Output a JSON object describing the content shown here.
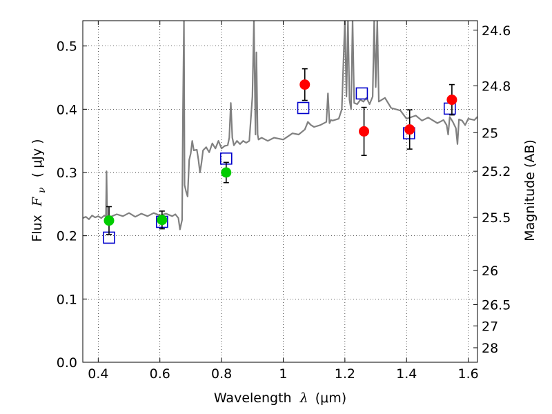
{
  "chart_data": {
    "type": "scatter",
    "xlabel_prefix": "Wavelength",
    "xlabel_symbol": "λ",
    "xlabel_unit": "(μm)",
    "ylabel_prefix": "Flux",
    "ylabel_symbol": "F",
    "ylabel_subscript": "ν",
    "ylabel_unit": "( μJy )",
    "y2label": "Magnitude (AB)",
    "xlim": [
      0.35,
      1.63
    ],
    "ylim": [
      0.0,
      0.54
    ],
    "x_ticks": [
      0.4,
      0.6,
      0.8,
      1.0,
      1.2,
      1.4,
      1.6
    ],
    "x_tick_labels": [
      "0.4",
      "0.6",
      "0.8",
      "1",
      "1.2",
      "1.4",
      "1.6"
    ],
    "y_ticks": [
      0.0,
      0.1,
      0.2,
      0.3,
      0.4,
      0.5
    ],
    "y_tick_labels": [
      "0.0",
      "0.1",
      "0.2",
      "0.3",
      "0.4",
      "0.5"
    ],
    "y2_ticks": [
      {
        "label": "24.6",
        "flux": 0.525
      },
      {
        "label": "24.8",
        "flux": 0.437
      },
      {
        "label": "25",
        "flux": 0.363
      },
      {
        "label": "25.2",
        "flux": 0.302
      },
      {
        "label": "25.5",
        "flux": 0.229
      },
      {
        "label": "26",
        "flux": 0.145
      },
      {
        "label": "26.5",
        "flux": 0.0912
      },
      {
        "label": "27",
        "flux": 0.0575
      },
      {
        "label": "28",
        "flux": 0.0229
      }
    ],
    "grid": true,
    "series": [
      {
        "kind": "spectrum",
        "color": "#808080",
        "x": [
          0.35,
          0.36,
          0.37,
          0.38,
          0.39,
          0.4,
          0.41,
          0.42,
          0.425,
          0.427,
          0.429,
          0.432,
          0.44,
          0.46,
          0.48,
          0.5,
          0.52,
          0.54,
          0.56,
          0.58,
          0.6,
          0.62,
          0.64,
          0.65,
          0.66,
          0.665,
          0.672,
          0.675,
          0.678,
          0.68,
          0.685,
          0.69,
          0.695,
          0.7,
          0.705,
          0.71,
          0.72,
          0.725,
          0.73,
          0.735,
          0.74,
          0.75,
          0.76,
          0.77,
          0.78,
          0.79,
          0.8,
          0.81,
          0.82,
          0.825,
          0.83,
          0.835,
          0.84,
          0.85,
          0.86,
          0.87,
          0.88,
          0.89,
          0.9,
          0.905,
          0.91,
          0.913,
          0.917,
          0.92,
          0.93,
          0.95,
          0.97,
          1.0,
          1.03,
          1.05,
          1.07,
          1.08,
          1.09,
          1.1,
          1.12,
          1.14,
          1.145,
          1.15,
          1.155,
          1.16,
          1.18,
          1.19,
          1.2,
          1.205,
          1.21,
          1.215,
          1.22,
          1.225,
          1.23,
          1.24,
          1.25,
          1.26,
          1.27,
          1.28,
          1.29,
          1.295,
          1.3,
          1.305,
          1.31,
          1.33,
          1.35,
          1.38,
          1.4,
          1.43,
          1.45,
          1.47,
          1.5,
          1.52,
          1.53,
          1.535,
          1.54,
          1.55,
          1.56,
          1.565,
          1.57,
          1.58,
          1.59,
          1.6,
          1.62,
          1.63
        ],
        "y": [
          0.228,
          0.23,
          0.226,
          0.232,
          0.229,
          0.231,
          0.228,
          0.232,
          0.23,
          0.302,
          0.232,
          0.226,
          0.23,
          0.234,
          0.231,
          0.236,
          0.23,
          0.235,
          0.231,
          0.236,
          0.232,
          0.235,
          0.231,
          0.234,
          0.228,
          0.21,
          0.225,
          0.4,
          0.54,
          0.28,
          0.27,
          0.262,
          0.32,
          0.33,
          0.35,
          0.335,
          0.336,
          0.32,
          0.3,
          0.315,
          0.335,
          0.34,
          0.332,
          0.346,
          0.338,
          0.35,
          0.338,
          0.342,
          0.343,
          0.355,
          0.41,
          0.355,
          0.343,
          0.35,
          0.345,
          0.35,
          0.347,
          0.35,
          0.42,
          0.54,
          0.36,
          0.49,
          0.36,
          0.352,
          0.355,
          0.35,
          0.355,
          0.352,
          0.362,
          0.36,
          0.368,
          0.38,
          0.375,
          0.372,
          0.375,
          0.38,
          0.425,
          0.378,
          0.383,
          0.382,
          0.385,
          0.4,
          0.54,
          0.42,
          0.54,
          0.415,
          0.4,
          0.54,
          0.41,
          0.408,
          0.415,
          0.412,
          0.418,
          0.408,
          0.42,
          0.54,
          0.435,
          0.54,
          0.412,
          0.418,
          0.402,
          0.398,
          0.385,
          0.39,
          0.382,
          0.387,
          0.378,
          0.383,
          0.375,
          0.36,
          0.388,
          0.38,
          0.37,
          0.345,
          0.384,
          0.382,
          0.375,
          0.385,
          0.383,
          0.388
        ]
      },
      {
        "kind": "model_photometry",
        "marker": "open-square",
        "color": "#0000cc",
        "x": [
          0.435,
          0.607,
          0.815,
          1.065,
          1.255,
          1.408,
          1.54
        ],
        "y": [
          0.197,
          0.222,
          0.322,
          0.402,
          0.425,
          0.362,
          0.401
        ]
      },
      {
        "kind": "observed",
        "marker": "filled-circle",
        "color": "#00cc00",
        "x": [
          0.435,
          0.607,
          0.815
        ],
        "y": [
          0.224,
          0.225,
          0.3
        ],
        "err": [
          0.022,
          0.014,
          0.016
        ]
      },
      {
        "kind": "observed",
        "marker": "filled-circle",
        "color": "#ff0000",
        "x": [
          1.07,
          1.262,
          1.41,
          1.547
        ],
        "y": [
          0.439,
          0.365,
          0.368,
          0.415
        ],
        "err": [
          0.025,
          0.038,
          0.031,
          0.024
        ]
      }
    ]
  }
}
